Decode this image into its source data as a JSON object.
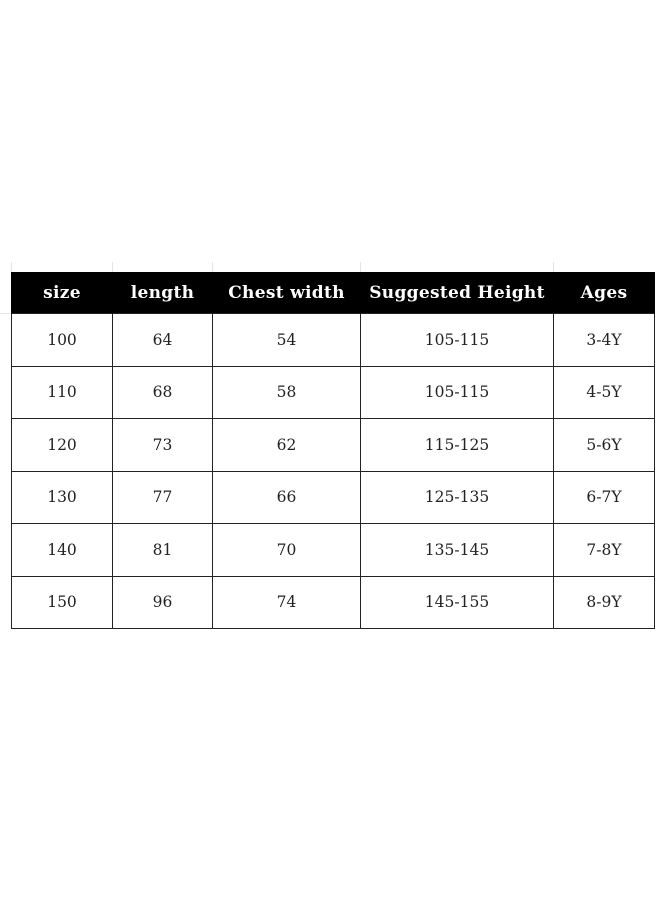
{
  "size_chart": {
    "headers": [
      "size",
      "length",
      "Chest width",
      "Suggested Height",
      "Ages"
    ],
    "rows": [
      [
        "100",
        "64",
        "54",
        "105-115",
        "3-4Y"
      ],
      [
        "110",
        "68",
        "58",
        "105-115",
        "4-5Y"
      ],
      [
        "120",
        "73",
        "62",
        "115-125",
        "5-6Y"
      ],
      [
        "130",
        "77",
        "66",
        "125-135",
        "6-7Y"
      ],
      [
        "140",
        "81",
        "70",
        "135-145",
        "7-8Y"
      ],
      [
        "150",
        "96",
        "74",
        "145-155",
        "8-9Y"
      ]
    ]
  }
}
